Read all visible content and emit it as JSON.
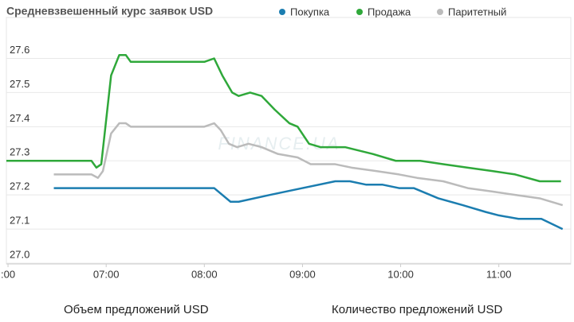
{
  "chart_data": {
    "type": "line",
    "title": "Средневзвешенный курс заявок USD",
    "watermark": "FINANCE.UA",
    "xlim": [
      "05:59",
      "11:44"
    ],
    "xticks": [
      {
        "value": "06:00",
        "label": ":00"
      },
      "07:00",
      "08:00",
      "09:00",
      "10:00",
      "11:00"
    ],
    "ylim": [
      27.0,
      27.72
    ],
    "yticks": [
      {
        "value": 27,
        "label": "27.0"
      },
      27.1,
      27.2,
      27.3,
      27.4,
      27.5,
      27.6
    ],
    "grid": true,
    "series": [
      {
        "name": "Покупка",
        "color": "#1b7db0",
        "x": [
          "06:28",
          "08:06",
          "08:16",
          "08:21",
          "08:40",
          "09:00",
          "09:20",
          "09:29",
          "09:39",
          "09:49",
          "09:59",
          "10:08",
          "10:23",
          "10:38",
          "10:52",
          "11:00",
          "11:12",
          "11:26",
          "11:39"
        ],
        "values": [
          27.22,
          27.22,
          27.18,
          27.18,
          27.2,
          27.22,
          27.24,
          27.24,
          27.23,
          27.23,
          27.22,
          27.22,
          27.19,
          27.17,
          27.15,
          27.14,
          27.13,
          27.13,
          27.1
        ]
      },
      {
        "name": "Продажа",
        "color": "#2fa83a",
        "x": [
          "05:59",
          "06:51",
          "06:54",
          "06:57",
          "07:03",
          "07:08",
          "07:12",
          "07:15",
          "08:00",
          "08:06",
          "08:11",
          "08:17",
          "08:21",
          "08:28",
          "08:35",
          "08:43",
          "08:52",
          "08:57",
          "09:04",
          "09:11",
          "09:26",
          "09:43",
          "09:57",
          "10:12",
          "10:26",
          "10:41",
          "10:56",
          "11:10",
          "11:25",
          "11:38"
        ],
        "values": [
          27.3,
          27.3,
          27.28,
          27.29,
          27.55,
          27.61,
          27.61,
          27.59,
          27.59,
          27.6,
          27.55,
          27.5,
          27.49,
          27.5,
          27.49,
          27.45,
          27.41,
          27.4,
          27.35,
          27.34,
          27.34,
          27.32,
          27.3,
          27.3,
          27.29,
          27.28,
          27.27,
          27.26,
          27.24,
          27.24
        ]
      },
      {
        "name": "Паритетный",
        "color": "#bbbbbb",
        "x": [
          "06:28",
          "06:51",
          "06:55",
          "06:58",
          "07:03",
          "07:08",
          "07:12",
          "07:15",
          "08:00",
          "08:06",
          "08:10",
          "08:15",
          "08:20",
          "08:27",
          "08:35",
          "08:45",
          "08:57",
          "09:05",
          "09:20",
          "09:30",
          "09:45",
          "09:59",
          "10:10",
          "10:26",
          "10:41",
          "10:56",
          "11:10",
          "11:25",
          "11:39"
        ],
        "values": [
          27.26,
          27.26,
          27.25,
          27.27,
          27.38,
          27.41,
          27.41,
          27.4,
          27.4,
          27.41,
          27.39,
          27.35,
          27.34,
          27.35,
          27.34,
          27.32,
          27.31,
          27.29,
          27.29,
          27.28,
          27.27,
          27.26,
          27.25,
          27.24,
          27.22,
          27.21,
          27.2,
          27.19,
          27.17
        ]
      }
    ],
    "footer_labels": [
      "Объем предложений USD",
      "Количество предложений USD"
    ]
  }
}
